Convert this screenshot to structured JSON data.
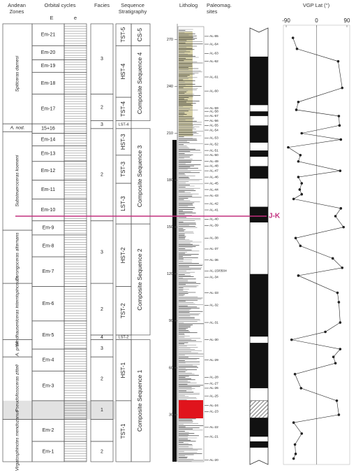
{
  "headers": {
    "andean_zones": [
      "Andean",
      "Zones"
    ],
    "orbital_cycles": "Orbital cycles",
    "orbital_big": "E",
    "orbital_small": "e",
    "facies": "Facies",
    "sequence_stratigraphy": [
      "Sequence",
      "Stratigraphy"
    ],
    "litholog": "Litholog",
    "paleomag_sites": [
      "Paleomag.",
      "sites"
    ]
  },
  "zones": [
    {
      "label": "Spiticeras damesi",
      "top": 280,
      "bottom": 216
    },
    {
      "label": "A. nod.",
      "top": 216,
      "bottom": 211
    },
    {
      "label": "Substeueroceras koeneni",
      "top": 211,
      "bottom": 148
    },
    {
      "label": "Corongoceras alternans",
      "top": 148,
      "bottom": 114
    },
    {
      "label": "Windhauseniceras internispinosum",
      "top": 114,
      "bottom": 78
    },
    {
      "label": "A. prox.",
      "top": 78,
      "bottom": 67
    },
    {
      "label": "Pseudolissoceras zitteli",
      "top": 67,
      "bottom": 27
    },
    {
      "label": "Virgatosphinctes mendozanus",
      "top": 27,
      "bottom": 0
    }
  ],
  "orbital": [
    {
      "label": "Em-21",
      "top": 280,
      "bottom": 266
    },
    {
      "label": "Em-20",
      "top": 266,
      "bottom": 257
    },
    {
      "label": "Em-19",
      "top": 257,
      "bottom": 249
    },
    {
      "label": "Em-18",
      "top": 249,
      "bottom": 235
    },
    {
      "label": "Em-17",
      "top": 235,
      "bottom": 216
    },
    {
      "label": "15+16",
      "top": 216,
      "bottom": 210
    },
    {
      "label": "Em-14",
      "top": 210,
      "bottom": 202
    },
    {
      "label": "Em-13",
      "top": 202,
      "bottom": 192
    },
    {
      "label": "Em-12",
      "top": 192,
      "bottom": 180
    },
    {
      "label": "Em-11",
      "top": 180,
      "bottom": 168
    },
    {
      "label": "Em-10",
      "top": 168,
      "bottom": 154
    },
    {
      "label": "Em-9",
      "top": 154,
      "bottom": 145
    },
    {
      "label": "Em-8",
      "top": 145,
      "bottom": 131
    },
    {
      "label": "Em-7",
      "top": 131,
      "bottom": 112
    },
    {
      "label": "Em-6",
      "top": 112,
      "bottom": 90
    },
    {
      "label": "Em-5",
      "top": 90,
      "bottom": 72
    },
    {
      "label": "Em-4",
      "top": 72,
      "bottom": 58
    },
    {
      "label": "Em-3",
      "top": 58,
      "bottom": 39
    },
    {
      "top": 39,
      "bottom": 27
    },
    {
      "label": "Em-2",
      "top": 27,
      "bottom": 13
    },
    {
      "label": "Em-1",
      "top": 13,
      "bottom": 0
    }
  ],
  "facies": [
    {
      "label": "3",
      "top": 280,
      "bottom": 235
    },
    {
      "label": "2",
      "top": 235,
      "bottom": 218
    },
    {
      "label": "3",
      "top": 218,
      "bottom": 213
    },
    {
      "label": "2",
      "top": 213,
      "bottom": 154
    },
    {
      "label": "3",
      "top": 154,
      "bottom": 114
    },
    {
      "label": "2",
      "top": 114,
      "bottom": 81
    },
    {
      "label": "4",
      "top": 81,
      "bottom": 78
    },
    {
      "label": "3",
      "top": 78,
      "bottom": 67
    },
    {
      "label": "2",
      "top": 67,
      "bottom": 39
    },
    {
      "label": "1",
      "top": 39,
      "bottom": 27
    },
    {
      "top": 27,
      "bottom": 13
    },
    {
      "label": "2",
      "top": 13,
      "bottom": 0
    }
  ],
  "systems_tracts": [
    {
      "label": "TST-5",
      "top": 280,
      "bottom": 266
    },
    {
      "label": "HST-4",
      "top": 266,
      "bottom": 233
    },
    {
      "label": "TST-4",
      "top": 233,
      "bottom": 218
    },
    {
      "label": "LST-4",
      "top": 218,
      "bottom": 213
    },
    {
      "label": "HST-3",
      "top": 213,
      "bottom": 196
    },
    {
      "label": "TST-3",
      "top": 196,
      "bottom": 178
    },
    {
      "label": "LST-3",
      "top": 178,
      "bottom": 152
    },
    {
      "label": "HST-2",
      "top": 152,
      "bottom": 112
    },
    {
      "label": "TST-2",
      "top": 112,
      "bottom": 81
    },
    {
      "label": "LST-2",
      "top": 81,
      "bottom": 78
    },
    {
      "label": "HST-1",
      "top": 78,
      "bottom": 39
    },
    {
      "label": "TST-1",
      "top": 39,
      "bottom": 0
    }
  ],
  "composite_sequences": [
    {
      "label": "CS-5",
      "top": 280,
      "bottom": 266
    },
    {
      "label": "Composite Sequence 4",
      "top": 266,
      "bottom": 218
    },
    {
      "label": "Composite Sequence 3",
      "top": 213,
      "bottom": 152
    },
    {
      "label": "Composite Sequence 2",
      "top": 152,
      "bottom": 81
    },
    {
      "label": "Composite Sequence 1",
      "top": 78,
      "bottom": 0
    }
  ],
  "sites": [
    {
      "label": "AL-65",
      "height": 272
    },
    {
      "label": "AL-64",
      "height": 267
    },
    {
      "label": "AL-63",
      "height": 261
    },
    {
      "label": "AL-62",
      "height": 256
    },
    {
      "label": "AL-61",
      "height": 246
    },
    {
      "label": "AL-60",
      "height": 237
    },
    {
      "label": "AL-59",
      "height": 226
    },
    {
      "label": "AL-58",
      "height": 224
    },
    {
      "label": "AL-57",
      "height": 221
    },
    {
      "label": "AL-56",
      "height": 218
    },
    {
      "label": "AL-55",
      "height": 215
    },
    {
      "label": "AL-54",
      "height": 212
    },
    {
      "label": "AL-53",
      "height": 207
    },
    {
      "label": "AL-52",
      "height": 203
    },
    {
      "label": "AL-51",
      "height": 199
    },
    {
      "label": "AL-50",
      "height": 196
    },
    {
      "label": "AL-49",
      "height": 192
    },
    {
      "label": "AL-48",
      "height": 189
    },
    {
      "label": "AL-47",
      "height": 186
    },
    {
      "label": "AL-46",
      "height": 182
    },
    {
      "label": "AL-45",
      "height": 178
    },
    {
      "label": "AL-44",
      "height": 174
    },
    {
      "label": "AL-43",
      "height": 170
    },
    {
      "label": "AL-42",
      "height": 165
    },
    {
      "label": "AL-41",
      "height": 161
    },
    {
      "label": "AL-40",
      "height": 155
    },
    {
      "label": "AL-39",
      "height": 151
    },
    {
      "label": "AL-38",
      "height": 143
    },
    {
      "label": "AL-37",
      "height": 136
    },
    {
      "label": "AL-36",
      "height": 129
    },
    {
      "label": "AL-15/0504",
      "height": 122
    },
    {
      "label": "AL-34",
      "height": 118
    },
    {
      "label": "AL-33",
      "height": 108
    },
    {
      "label": "AL-32",
      "height": 100
    },
    {
      "label": "AL-31",
      "height": 89
    },
    {
      "label": "AL-30",
      "height": 78
    },
    {
      "label": "AL-29",
      "height": 65
    },
    {
      "label": "AL-28",
      "height": 54
    },
    {
      "label": "AL-27",
      "height": 50
    },
    {
      "label": "AL-26",
      "height": 47
    },
    {
      "label": "AL-25",
      "height": 42
    },
    {
      "label": "AL-24",
      "height": 36
    },
    {
      "label": "AL-23",
      "height": 32
    },
    {
      "label": "AL-22",
      "height": 22
    },
    {
      "label": "AL-21",
      "height": 16
    },
    {
      "label": "AL-20",
      "height": 1
    }
  ],
  "polarity": {
    "normal": [
      [
        228,
        259
      ],
      [
        221,
        224
      ],
      [
        204,
        215
      ],
      [
        195,
        199
      ],
      [
        181,
        189
      ],
      [
        153,
        163
      ],
      [
        80,
        120
      ],
      [
        47,
        76
      ],
      [
        16,
        28
      ],
      [
        9,
        13
      ]
    ],
    "uncertain": [
      28,
      39
    ]
  },
  "jk_boundary": {
    "label": "J-K",
    "height": 157,
    "color": "#c2307e"
  },
  "chart_data": {
    "type": "line",
    "title": "VGP Lat (°)",
    "x": [
      271,
      264,
      256,
      239,
      230,
      225,
      221,
      215,
      210,
      206,
      201,
      196,
      192,
      186,
      182,
      178,
      174,
      171,
      168,
      162,
      157,
      150,
      143,
      138,
      130,
      124,
      119,
      108,
      102,
      89,
      83,
      78,
      72,
      67,
      63,
      56,
      47,
      39,
      30,
      25,
      18,
      11,
      5,
      2
    ],
    "series": [
      {
        "color": "#222222",
        "values": [
          -70,
          -58,
          64,
          76,
          -54,
          -60,
          66,
          68,
          -44,
          72,
          -84,
          -48,
          -54,
          70,
          -54,
          -44,
          -50,
          -44,
          -68,
          72,
          56,
          80,
          -62,
          -48,
          48,
          76,
          -54,
          62,
          66,
          70,
          26,
          -74,
          70,
          50,
          56,
          -64,
          -46,
          60,
          66,
          -68,
          -44,
          -64,
          -62,
          -68
        ]
      }
    ],
    "xlim": [
      0,
      280
    ],
    "xticks": [
      30,
      60,
      90,
      120,
      150,
      180,
      210,
      240,
      270
    ],
    "ylim": [
      -90,
      90
    ],
    "yticks": [
      -90,
      0,
      90
    ]
  }
}
